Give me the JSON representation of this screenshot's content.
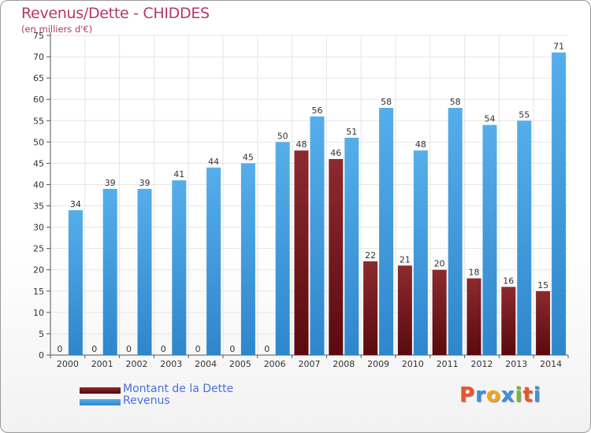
{
  "title": "Revenus/Dette - CHIDDES",
  "subtitle": "(en milliers d'€)",
  "colors": {
    "dette": "#7a1419",
    "revenus": "#3f9be0",
    "title": "#b4376a",
    "legend_text": "#4a6fe0"
  },
  "legend": [
    {
      "label": "Montant de la Dette",
      "color": "#7a1419"
    },
    {
      "label": "Revenus",
      "color": "#3f9be0"
    }
  ],
  "logo": {
    "letters": [
      "P",
      "r",
      "o",
      "x",
      "i",
      "t",
      "i"
    ],
    "colors": [
      "#e8572a",
      "#3b8fd9",
      "#f2a81d",
      "#3b8fd9",
      "#79b829",
      "#e8572a",
      "#3b8fd9"
    ]
  },
  "chart_data": {
    "type": "bar",
    "categories": [
      "2000",
      "2001",
      "2002",
      "2003",
      "2004",
      "2005",
      "2006",
      "2007",
      "2008",
      "2009",
      "2010",
      "2011",
      "2012",
      "2013",
      "2014"
    ],
    "series": [
      {
        "name": "Montant de la Dette",
        "values": [
          0,
          0,
          0,
          0,
          0,
          0,
          0,
          48,
          46,
          22,
          21,
          20,
          18,
          16,
          15
        ]
      },
      {
        "name": "Revenus",
        "values": [
          34,
          39,
          39,
          41,
          44,
          45,
          50,
          56,
          51,
          58,
          48,
          58,
          54,
          55,
          71
        ]
      }
    ],
    "ylim": [
      0,
      75
    ],
    "yticks": [
      0,
      5,
      10,
      15,
      20,
      25,
      30,
      35,
      40,
      45,
      50,
      55,
      60,
      65,
      70,
      75
    ],
    "grid": true,
    "legend_position": "bottom-left"
  }
}
